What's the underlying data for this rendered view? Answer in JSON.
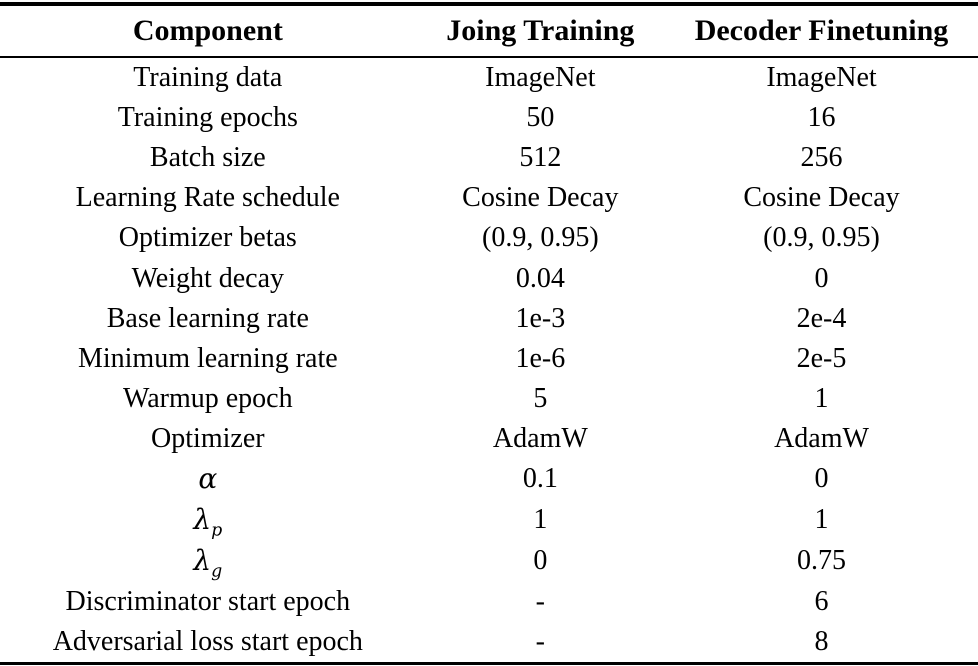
{
  "table": {
    "columns": [
      "Component",
      "Joing Training",
      "Decoder Finetuning"
    ],
    "rows": [
      {
        "cells": [
          "Training data",
          "ImageNet",
          "ImageNet"
        ],
        "math": false
      },
      {
        "cells": [
          "Training epochs",
          "50",
          "16"
        ],
        "math": false
      },
      {
        "cells": [
          "Batch size",
          "512",
          "256"
        ],
        "math": false
      },
      {
        "cells": [
          "Learning Rate schedule",
          "Cosine Decay",
          "Cosine Decay"
        ],
        "math": false
      },
      {
        "cells": [
          "Optimizer betas",
          "(0.9, 0.95)",
          "(0.9, 0.95)"
        ],
        "math": false
      },
      {
        "cells": [
          "Weight decay",
          "0.04",
          "0"
        ],
        "math": false
      },
      {
        "cells": [
          "Base learning rate",
          "1e-3",
          "2e-4"
        ],
        "math": false
      },
      {
        "cells": [
          "Minimum learning rate",
          "1e-6",
          "2e-5"
        ],
        "math": false
      },
      {
        "cells": [
          "Warmup epoch",
          "5",
          "1"
        ],
        "math": false
      },
      {
        "cells": [
          "Optimizer",
          "AdamW",
          "AdamW"
        ],
        "math": false
      },
      {
        "cells": [
          "α",
          "0.1",
          "0"
        ],
        "math": true
      },
      {
        "cells": [
          "λ_p",
          "1",
          "1"
        ],
        "math": true
      },
      {
        "cells": [
          "λ_g",
          "0",
          "0.75"
        ],
        "math": true
      },
      {
        "cells": [
          "Discriminator start epoch",
          "-",
          "6"
        ],
        "math": false
      },
      {
        "cells": [
          "Adversarial loss start epoch",
          "-",
          "8"
        ],
        "math": false
      }
    ],
    "text_color": "#000000",
    "background_color": "#ffffff"
  }
}
